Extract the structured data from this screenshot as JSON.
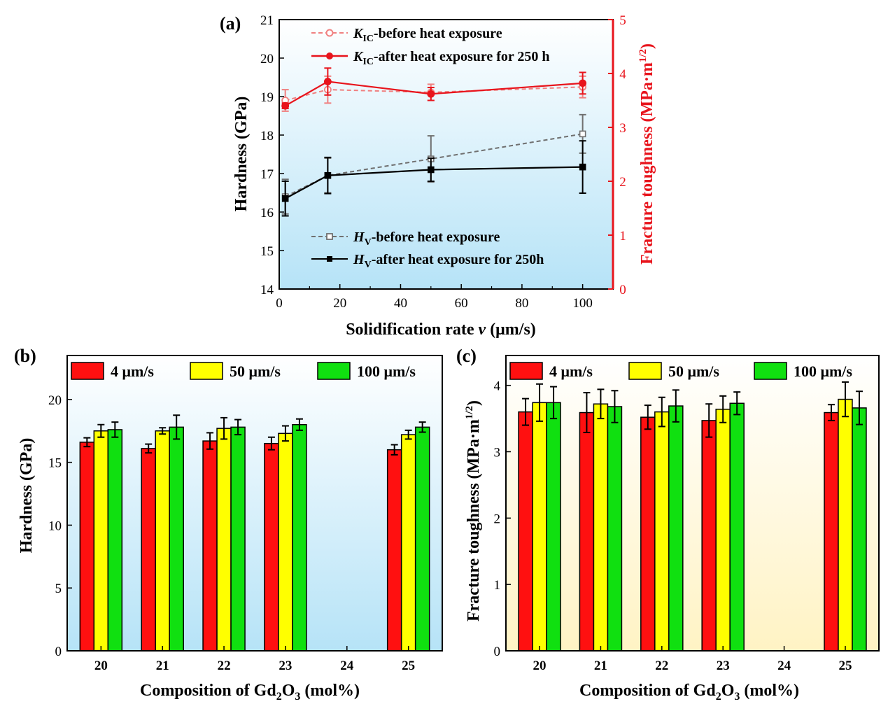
{
  "panel_labels": [
    "(a)",
    "(b)",
    "(c)"
  ],
  "colors": {
    "kic_before": "#f08080",
    "kic_after": "#e8141c",
    "hv_before": "#707070",
    "hv_after": "#000000",
    "bar_4": "#ff1010",
    "bar_50": "#ffff00",
    "bar_100": "#10e010",
    "bg_blue": "#b6e3f7",
    "bg_yellow": "#fff3c4",
    "right_axis": "#e8141c"
  },
  "chart_data": [
    {
      "type": "line",
      "panel": "(a)",
      "xlabel_pre": "Solidification rate ",
      "xlabel_var": "v",
      "xlabel_post": " (μm/s)",
      "ylabel": "Hardness (GPa)",
      "y2label_pre": "Fracture toughness (MPa·m",
      "y2label_sup": "1/2",
      "y2label_post": ")",
      "xlim": [
        0,
        110
      ],
      "ylim": [
        14,
        21
      ],
      "y2lim": [
        0,
        5
      ],
      "xticks": [
        0,
        20,
        40,
        60,
        80,
        100
      ],
      "yticks": [
        14,
        15,
        16,
        17,
        18,
        19,
        20,
        21
      ],
      "y2ticks": [
        0,
        1,
        2,
        3,
        4,
        5
      ],
      "series": [
        {
          "name_var": "K",
          "name_sub": "IC",
          "name_rest": "-before heat exposure",
          "axis": "right",
          "style": "dashed",
          "marker": "open-circle",
          "color_key": "kic_before",
          "x": [
            2,
            16,
            50,
            100
          ],
          "y": [
            3.5,
            3.7,
            3.65,
            3.75
          ],
          "err": [
            0.2,
            0.25,
            0.15,
            0.2
          ]
        },
        {
          "name_var": "K",
          "name_sub": "IC",
          "name_rest": "-after heat exposure for 250 h",
          "axis": "right",
          "style": "solid",
          "marker": "filled-circle",
          "color_key": "kic_after",
          "x": [
            2,
            16,
            50,
            100
          ],
          "y": [
            3.4,
            3.85,
            3.62,
            3.82
          ],
          "err": [
            0.05,
            0.25,
            0.12,
            0.2
          ]
        },
        {
          "name_var": "H",
          "name_sub": "V",
          "name_rest": "-before heat exposure",
          "axis": "left",
          "style": "dashed",
          "marker": "open-square",
          "color_key": "hv_before",
          "x": [
            2,
            16,
            50,
            100
          ],
          "y": [
            16.4,
            16.95,
            17.38,
            18.03
          ],
          "err": [
            0.45,
            0.45,
            0.6,
            0.5
          ]
        },
        {
          "name_var": "H",
          "name_sub": "V",
          "name_rest": "-after heat exposure for 250h",
          "axis": "left",
          "style": "solid",
          "marker": "filled-square",
          "color_key": "hv_after",
          "x": [
            2,
            16,
            50,
            100
          ],
          "y": [
            16.35,
            16.95,
            17.1,
            17.17
          ],
          "err": [
            0.45,
            0.47,
            0.3,
            0.68
          ]
        }
      ]
    },
    {
      "type": "bar",
      "panel": "(b)",
      "xlabel_pre": "Composition of Gd",
      "xlabel_sub": "2",
      "xlabel_mid": "O",
      "xlabel_sub2": "3",
      "xlabel_post": " (mol%)",
      "ylabel": "Hardness (GPa)",
      "ylim": [
        0,
        23.5
      ],
      "yticks": [
        0,
        5,
        10,
        15,
        20
      ],
      "categories": [
        "20",
        "21",
        "22",
        "23",
        "24",
        "25"
      ],
      "series": [
        {
          "name": "4 μm/s",
          "color_key": "bar_4",
          "values": [
            16.6,
            16.1,
            16.7,
            16.5,
            null,
            16.0
          ],
          "err": [
            0.35,
            0.35,
            0.65,
            0.5,
            null,
            0.4
          ]
        },
        {
          "name": "50 μm/s",
          "color_key": "bar_50",
          "values": [
            17.5,
            17.5,
            17.7,
            17.3,
            null,
            17.2
          ],
          "err": [
            0.5,
            0.25,
            0.85,
            0.6,
            null,
            0.35
          ]
        },
        {
          "name": "100 μm/s",
          "color_key": "bar_100",
          "values": [
            17.6,
            17.8,
            17.8,
            18.0,
            null,
            17.8
          ],
          "err": [
            0.6,
            0.95,
            0.6,
            0.45,
            null,
            0.4
          ]
        }
      ]
    },
    {
      "type": "bar",
      "panel": "(c)",
      "xlabel_pre": "Composition of Gd",
      "xlabel_sub": "2",
      "xlabel_mid": "O",
      "xlabel_sub2": "3",
      "xlabel_post": " (mol%)",
      "ylabel_pre": "Fracture toughness (MPa·m",
      "ylabel_sup": "1/2",
      "ylabel_post": ")",
      "ylim": [
        0,
        4.45
      ],
      "yticks": [
        0,
        1,
        2,
        3,
        4
      ],
      "categories": [
        "20",
        "21",
        "22",
        "23",
        "24",
        "25"
      ],
      "series": [
        {
          "name": "4 μm/s",
          "color_key": "bar_4",
          "values": [
            3.6,
            3.59,
            3.52,
            3.47,
            null,
            3.59
          ],
          "err": [
            0.2,
            0.3,
            0.18,
            0.25,
            null,
            0.12
          ]
        },
        {
          "name": "50 μm/s",
          "color_key": "bar_50",
          "values": [
            3.74,
            3.72,
            3.6,
            3.64,
            null,
            3.79
          ],
          "err": [
            0.28,
            0.22,
            0.22,
            0.2,
            null,
            0.26
          ]
        },
        {
          "name": "100 μm/s",
          "color_key": "bar_100",
          "values": [
            3.74,
            3.68,
            3.69,
            3.73,
            null,
            3.66
          ],
          "err": [
            0.24,
            0.24,
            0.24,
            0.17,
            null,
            0.25
          ]
        }
      ]
    }
  ]
}
